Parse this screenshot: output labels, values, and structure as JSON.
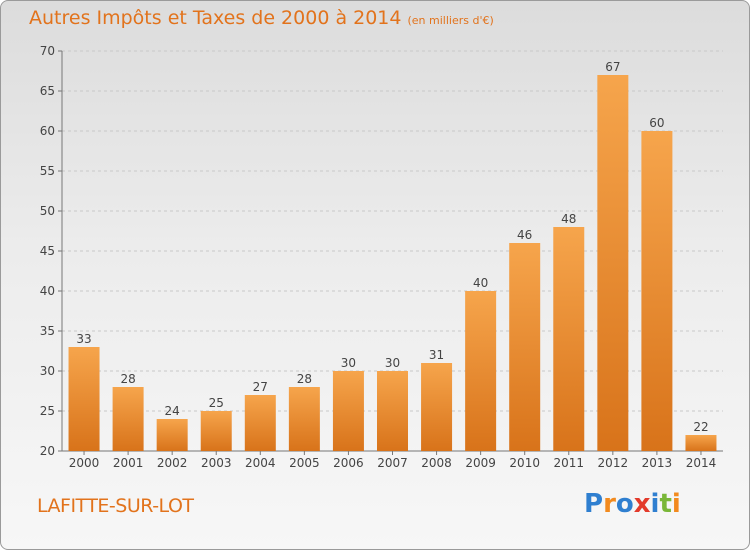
{
  "title": "Autres Impôts et Taxes de 2000 à 2014",
  "unit_label": "(en milliers d'€)",
  "commune": "LAFITTE-SUR-LOT",
  "logo": {
    "letters": [
      {
        "ch": "P",
        "color": "#2f7fd0"
      },
      {
        "ch": "r",
        "color": "#f28a1e"
      },
      {
        "ch": "o",
        "color": "#2f7fd0"
      },
      {
        "ch": "x",
        "color": "#e33a2b"
      },
      {
        "ch": "i",
        "color": "#2f7fd0"
      },
      {
        "ch": "t",
        "color": "#7ab738"
      },
      {
        "ch": "i",
        "color": "#f28a1e"
      }
    ]
  },
  "chart_data": {
    "type": "bar",
    "categories": [
      "2000",
      "2001",
      "2002",
      "2003",
      "2004",
      "2005",
      "2006",
      "2007",
      "2008",
      "2009",
      "2010",
      "2011",
      "2012",
      "2013",
      "2014"
    ],
    "values": [
      33,
      28,
      24,
      25,
      27,
      28,
      30,
      30,
      31,
      40,
      46,
      48,
      67,
      60,
      22
    ],
    "ylim": [
      20,
      70
    ],
    "yticks": [
      20,
      25,
      30,
      35,
      40,
      45,
      50,
      55,
      60,
      65,
      70
    ],
    "grid": true,
    "bar_color": "#f0932f"
  }
}
